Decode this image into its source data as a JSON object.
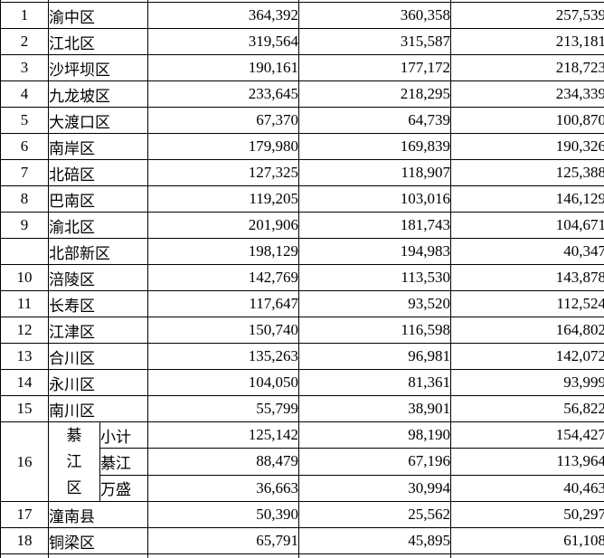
{
  "colors": {
    "background": "#ffffff",
    "border": "#000000",
    "text": "#000000",
    "faded_text": "#8d929c"
  },
  "table": {
    "description_rows_visible": 21,
    "rows": [
      {
        "type": "simple",
        "num": "1",
        "name": "渝中区",
        "values": [
          "364,392",
          "360,358",
          "257,539"
        ]
      },
      {
        "type": "simple",
        "num": "2",
        "name": "江北区",
        "values": [
          "319,564",
          "315,587",
          "213,181"
        ]
      },
      {
        "type": "simple",
        "num": "3",
        "name": "沙坪坝区",
        "values": [
          "190,161",
          "177,172",
          "218,723"
        ]
      },
      {
        "type": "simple",
        "num": "4",
        "name": "九龙坡区",
        "values": [
          "233,645",
          "218,295",
          "234,339"
        ]
      },
      {
        "type": "simple",
        "num": "5",
        "name": "大渡口区",
        "values": [
          "67,370",
          "64,739",
          "100,870"
        ]
      },
      {
        "type": "simple",
        "num": "6",
        "name": "南岸区",
        "values": [
          "179,980",
          "169,839",
          "190,326"
        ]
      },
      {
        "type": "simple",
        "num": "7",
        "name": "北碚区",
        "values": [
          "127,325",
          "118,907",
          "125,388"
        ]
      },
      {
        "type": "simple",
        "num": "8",
        "name": "巴南区",
        "values": [
          "119,205",
          "103,016",
          "146,129"
        ]
      },
      {
        "type": "simple",
        "num": "9",
        "name": "渝北区",
        "values": [
          "201,906",
          "181,743",
          "104,671"
        ]
      },
      {
        "type": "simple",
        "num": "",
        "name": "北部新区",
        "values": [
          "198,129",
          "194,983",
          "40,347"
        ]
      },
      {
        "type": "simple",
        "num": "10",
        "name": "涪陵区",
        "values": [
          "142,769",
          "113,530",
          "143,878"
        ]
      },
      {
        "type": "simple",
        "num": "11",
        "name": "长寿区",
        "values": [
          "117,647",
          "93,520",
          "112,524"
        ]
      },
      {
        "type": "simple",
        "num": "12",
        "name": "江津区",
        "values": [
          "150,740",
          "116,598",
          "164,802"
        ]
      },
      {
        "type": "simple",
        "num": "13",
        "name": "合川区",
        "values": [
          "135,263",
          "96,981",
          "142,072"
        ]
      },
      {
        "type": "simple",
        "num": "14",
        "name": "永川区",
        "values": [
          "104,050",
          "81,361",
          "93,999"
        ]
      },
      {
        "type": "simple",
        "num": "15",
        "name": "南川区",
        "values": [
          "55,799",
          "38,901",
          "56,822"
        ]
      },
      {
        "type": "group",
        "num": "16",
        "group_name": "綦江区",
        "group_chars": [
          "綦",
          "江",
          "区"
        ],
        "sub_rows": [
          {
            "name": "小计",
            "values": [
              "125,142",
              "98,190",
              "154,427"
            ]
          },
          {
            "name": "綦江",
            "values": [
              "88,479",
              "67,196",
              "113,964"
            ]
          },
          {
            "name": "万盛",
            "values": [
              "36,663",
              "30,994",
              "40,463"
            ]
          }
        ]
      },
      {
        "type": "simple",
        "num": "17",
        "name": "潼南县",
        "values": [
          "50,390",
          "25,562",
          "50,297"
        ]
      },
      {
        "type": "simple",
        "num": "18",
        "name": "铜梁区",
        "values": [
          "65,791",
          "45,895",
          "61,108"
        ],
        "faded_value_indexes": [
          2
        ]
      }
    ]
  }
}
